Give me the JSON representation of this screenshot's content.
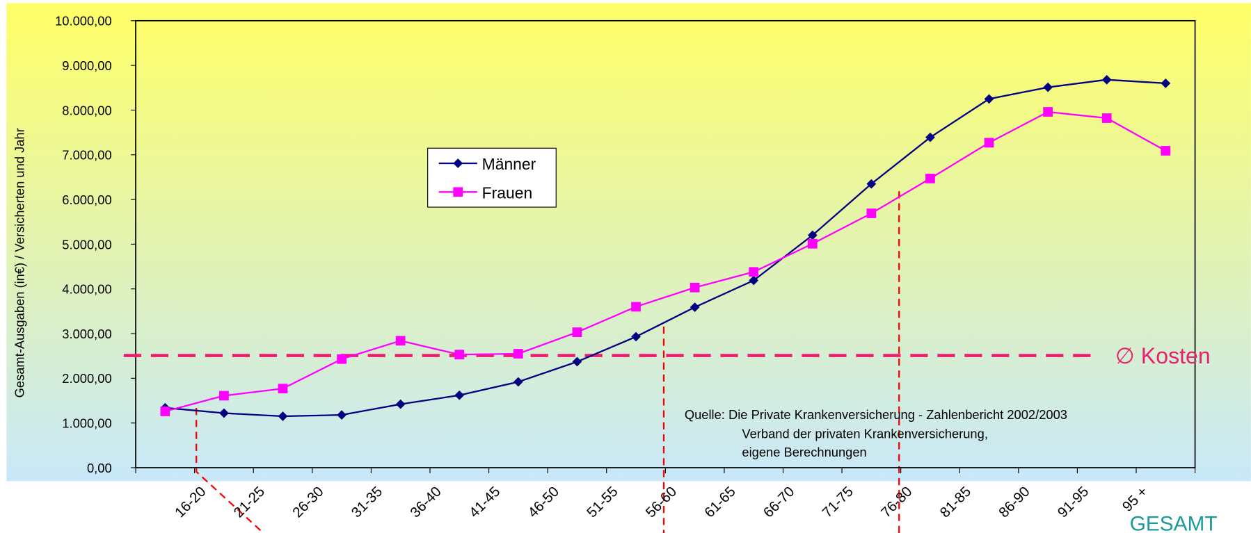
{
  "chart_data": {
    "type": "line",
    "y_label": "Gesamt-Ausgaben (in€) / Versicherten und Jahr",
    "categories": [
      "16-20",
      "21-25",
      "26-30",
      "31-35",
      "36-40",
      "41-45",
      "46-50",
      "51-55",
      "56-60",
      "61-65",
      "66-70",
      "71-75",
      "76-80",
      "81-85",
      "86-90",
      "91-95",
      "95 +",
      "GESAMT"
    ],
    "series": [
      {
        "name": "Männer",
        "color": "#000080",
        "marker": "diamond",
        "values": [
          1340,
          1220,
          1150,
          1180,
          1420,
          1620,
          1920,
          2370,
          2930,
          3590,
          4190,
          5200,
          6350,
          7390,
          8250,
          8510,
          8680,
          8600
        ]
      },
      {
        "name": "Frauen",
        "color": "#ff00ff",
        "marker": "square",
        "values": [
          1260,
          1610,
          1770,
          2430,
          2840,
          2530,
          2550,
          3030,
          3600,
          4030,
          4380,
          5010,
          5690,
          6470,
          7270,
          7960,
          7820,
          7090
        ]
      }
    ],
    "ylim": [
      0,
      10000
    ],
    "yticks": [
      {
        "value": 0,
        "label": "0,00"
      },
      {
        "value": 1000,
        "label": "1.000,00"
      },
      {
        "value": 2000,
        "label": "2.000,00"
      },
      {
        "value": 3000,
        "label": "3.000,00"
      },
      {
        "value": 4000,
        "label": "4.000,00"
      },
      {
        "value": 5000,
        "label": "5.000,00"
      },
      {
        "value": 6000,
        "label": "6.000,00"
      },
      {
        "value": 7000,
        "label": "7.000,00"
      },
      {
        "value": 8000,
        "label": "8.000,00"
      },
      {
        "value": 9000,
        "label": "9.000,00"
      },
      {
        "value": 10000,
        "label": "10.000,00"
      }
    ],
    "reference_line": {
      "value": 2510,
      "label": "∅ Kosten",
      "color": "#e8206e"
    },
    "source": [
      "Quelle: Die Private Krankenversicherung - Zahlenbericht 2002/2003",
      "Verband der privaten Krankenversicherung,",
      "eigene Berechnungen"
    ]
  }
}
